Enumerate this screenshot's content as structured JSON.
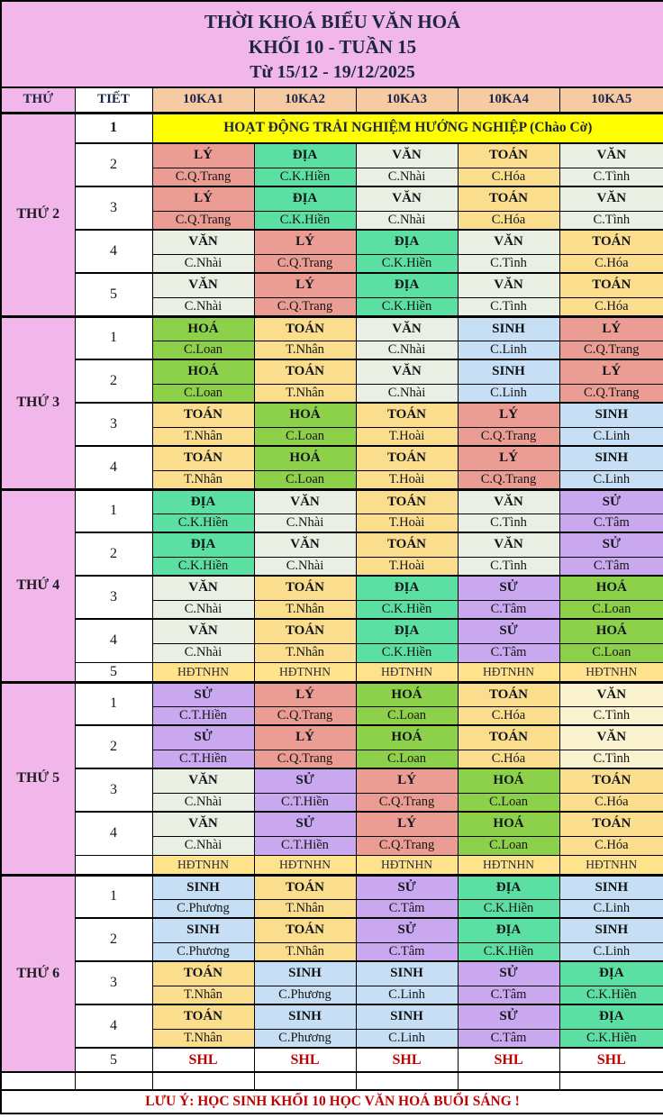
{
  "title": {
    "line1": "THỜI KHOÁ BIỂU VĂN HOÁ",
    "line2": "KHỐI 10 - TUẦN 15",
    "line3": "Từ 15/12 - 19/12/2025"
  },
  "header": {
    "columns": [
      "THỨ",
      "TIẾT",
      "10KA1",
      "10KA2",
      "10KA3",
      "10KA4",
      "10KA5"
    ]
  },
  "palette": {
    "pink": "#f1b6ea",
    "peach_header": "#f6cba3",
    "banner_yellow": "#ffff00",
    "ly": "#eb9c93",
    "dia": "#5cdfa3",
    "van": "#e9efe2",
    "van_cream": "#fbf2cf",
    "toan": "#fbdd8e",
    "hoa": "#8dd14b",
    "sinh": "#c6dff4",
    "su": "#c9a8f0",
    "hdtnhn": "#ffe28c",
    "white": "#ffffff",
    "red_text": "#c00000",
    "navy_text": "#1d2547"
  },
  "days": [
    {
      "label": "THỨ 2",
      "periods": [
        {
          "no": "1",
          "type": "banner",
          "text": "HOẠT ĐỘNG TRẢI NGHIỆM HƯỚNG NGHIỆP (Chào Cờ)"
        },
        {
          "no": "2",
          "type": "lesson",
          "cells": [
            {
              "s": "LÝ",
              "t": "C.Q.Trang",
              "c": "ly"
            },
            {
              "s": "ĐỊA",
              "t": "C.K.Hiền",
              "c": "dia"
            },
            {
              "s": "VĂN",
              "t": "C.Nhài",
              "c": "van"
            },
            {
              "s": "TOÁN",
              "t": "C.Hóa",
              "c": "toan"
            },
            {
              "s": "VĂN",
              "t": "C.Tình",
              "c": "van"
            }
          ]
        },
        {
          "no": "3",
          "type": "lesson",
          "cells": [
            {
              "s": "LÝ",
              "t": "C.Q.Trang",
              "c": "ly"
            },
            {
              "s": "ĐỊA",
              "t": "C.K.Hiền",
              "c": "dia"
            },
            {
              "s": "VĂN",
              "t": "C.Nhài",
              "c": "van"
            },
            {
              "s": "TOÁN",
              "t": "C.Hóa",
              "c": "toan"
            },
            {
              "s": "VĂN",
              "t": "C.Tình",
              "c": "van"
            }
          ]
        },
        {
          "no": "4",
          "type": "lesson",
          "cells": [
            {
              "s": "VĂN",
              "t": "C.Nhài",
              "c": "van"
            },
            {
              "s": "LÝ",
              "t": "C.Q.Trang",
              "c": "ly"
            },
            {
              "s": "ĐỊA",
              "t": "C.K.Hiền",
              "c": "dia"
            },
            {
              "s": "VĂN",
              "t": "C.Tình",
              "c": "van"
            },
            {
              "s": "TOÁN",
              "t": "C.Hóa",
              "c": "toan"
            }
          ]
        },
        {
          "no": "5",
          "type": "lesson",
          "cells": [
            {
              "s": "VĂN",
              "t": "C.Nhài",
              "c": "van"
            },
            {
              "s": "LÝ",
              "t": "C.Q.Trang",
              "c": "ly"
            },
            {
              "s": "ĐỊA",
              "t": "C.K.Hiền",
              "c": "dia"
            },
            {
              "s": "VĂN",
              "t": "C.Tình",
              "c": "van"
            },
            {
              "s": "TOÁN",
              "t": "C.Hóa",
              "c": "toan"
            }
          ]
        }
      ]
    },
    {
      "label": "THỨ 3",
      "periods": [
        {
          "no": "1",
          "type": "lesson",
          "cells": [
            {
              "s": "HOÁ",
              "t": "C.Loan",
              "c": "hoa"
            },
            {
              "s": "TOÁN",
              "t": "T.Nhân",
              "c": "toan"
            },
            {
              "s": "VĂN",
              "t": "C.Nhài",
              "c": "van"
            },
            {
              "s": "SINH",
              "t": "C.Linh",
              "c": "sinh"
            },
            {
              "s": "LÝ",
              "t": "C.Q.Trang",
              "c": "ly"
            }
          ]
        },
        {
          "no": "2",
          "type": "lesson",
          "cells": [
            {
              "s": "HOÁ",
              "t": "C.Loan",
              "c": "hoa"
            },
            {
              "s": "TOÁN",
              "t": "T.Nhân",
              "c": "toan"
            },
            {
              "s": "VĂN",
              "t": "C.Nhài",
              "c": "van"
            },
            {
              "s": "SINH",
              "t": "C.Linh",
              "c": "sinh"
            },
            {
              "s": "LÝ",
              "t": "C.Q.Trang",
              "c": "ly"
            }
          ]
        },
        {
          "no": "3",
          "type": "lesson",
          "cells": [
            {
              "s": "TOÁN",
              "t": "T.Nhân",
              "c": "toan"
            },
            {
              "s": "HOÁ",
              "t": "C.Loan",
              "c": "hoa"
            },
            {
              "s": "TOÁN",
              "t": "T.Hoài",
              "c": "toan"
            },
            {
              "s": "LÝ",
              "t": "C.Q.Trang",
              "c": "ly"
            },
            {
              "s": "SINH",
              "t": "C.Linh",
              "c": "sinh"
            }
          ]
        },
        {
          "no": "4",
          "type": "lesson",
          "cells": [
            {
              "s": "TOÁN",
              "t": "T.Nhân",
              "c": "toan"
            },
            {
              "s": "HOÁ",
              "t": "C.Loan",
              "c": "hoa"
            },
            {
              "s": "TOÁN",
              "t": "T.Hoài",
              "c": "toan"
            },
            {
              "s": "LÝ",
              "t": "C.Q.Trang",
              "c": "ly"
            },
            {
              "s": "SINH",
              "t": "C.Linh",
              "c": "sinh"
            }
          ]
        }
      ]
    },
    {
      "label": "THỨ 4",
      "periods": [
        {
          "no": "1",
          "type": "lesson",
          "cells": [
            {
              "s": "ĐỊA",
              "t": "C.K.Hiền",
              "c": "dia"
            },
            {
              "s": "VĂN",
              "t": "C.Nhài",
              "c": "van"
            },
            {
              "s": "TOÁN",
              "t": "T.Hoài",
              "c": "toan"
            },
            {
              "s": "VĂN",
              "t": "C.Tình",
              "c": "van"
            },
            {
              "s": "SỬ",
              "t": "C.Tâm",
              "c": "su"
            }
          ]
        },
        {
          "no": "2",
          "type": "lesson",
          "cells": [
            {
              "s": "ĐỊA",
              "t": "C.K.Hiền",
              "c": "dia"
            },
            {
              "s": "VĂN",
              "t": "C.Nhài",
              "c": "van"
            },
            {
              "s": "TOÁN",
              "t": "T.Hoài",
              "c": "toan"
            },
            {
              "s": "VĂN",
              "t": "C.Tình",
              "c": "van"
            },
            {
              "s": "SỬ",
              "t": "C.Tâm",
              "c": "su"
            }
          ]
        },
        {
          "no": "3",
          "type": "lesson",
          "cells": [
            {
              "s": "VĂN",
              "t": "C.Nhài",
              "c": "van"
            },
            {
              "s": "TOÁN",
              "t": "T.Nhân",
              "c": "toan"
            },
            {
              "s": "ĐỊA",
              "t": "C.K.Hiền",
              "c": "dia"
            },
            {
              "s": "SỬ",
              "t": "C.Tâm",
              "c": "su"
            },
            {
              "s": "HOÁ",
              "t": "C.Loan",
              "c": "hoa"
            }
          ]
        },
        {
          "no": "4",
          "type": "lesson",
          "cells": [
            {
              "s": "VĂN",
              "t": "C.Nhài",
              "c": "van"
            },
            {
              "s": "TOÁN",
              "t": "T.Nhân",
              "c": "toan"
            },
            {
              "s": "ĐỊA",
              "t": "C.K.Hiền",
              "c": "dia"
            },
            {
              "s": "SỬ",
              "t": "C.Tâm",
              "c": "su"
            },
            {
              "s": "HOÁ",
              "t": "C.Loan",
              "c": "hoa"
            }
          ]
        },
        {
          "no": "5",
          "type": "hdtnhn",
          "text": "HĐTNHN"
        }
      ]
    },
    {
      "label": "THỨ 5",
      "periods": [
        {
          "no": "1",
          "type": "lesson",
          "cells": [
            {
              "s": "SỬ",
              "t": "C.T.Hiền",
              "c": "su"
            },
            {
              "s": "LÝ",
              "t": "C.Q.Trang",
              "c": "ly"
            },
            {
              "s": "HOÁ",
              "t": "C.Loan",
              "c": "hoa"
            },
            {
              "s": "TOÁN",
              "t": "C.Hóa",
              "c": "toan"
            },
            {
              "s": "VĂN",
              "t": "C.Tình",
              "c": "van_cream"
            }
          ]
        },
        {
          "no": "2",
          "type": "lesson",
          "cells": [
            {
              "s": "SỬ",
              "t": "C.T.Hiền",
              "c": "su"
            },
            {
              "s": "LÝ",
              "t": "C.Q.Trang",
              "c": "ly"
            },
            {
              "s": "HOÁ",
              "t": "C.Loan",
              "c": "hoa"
            },
            {
              "s": "TOÁN",
              "t": "C.Hóa",
              "c": "toan"
            },
            {
              "s": "VĂN",
              "t": "C.Tình",
              "c": "van_cream"
            }
          ]
        },
        {
          "no": "3",
          "type": "lesson",
          "cells": [
            {
              "s": "VĂN",
              "t": "C.Nhài",
              "c": "van"
            },
            {
              "s": "SỬ",
              "t": "C.T.Hiền",
              "c": "su"
            },
            {
              "s": "LÝ",
              "t": "C.Q.Trang",
              "c": "ly"
            },
            {
              "s": "HOÁ",
              "t": "C.Loan",
              "c": "hoa"
            },
            {
              "s": "TOÁN",
              "t": "C.Hóa",
              "c": "toan"
            }
          ]
        },
        {
          "no": "4",
          "type": "lesson",
          "cells": [
            {
              "s": "VĂN",
              "t": "C.Nhài",
              "c": "van"
            },
            {
              "s": "SỬ",
              "t": "C.T.Hiền",
              "c": "su"
            },
            {
              "s": "LÝ",
              "t": "C.Q.Trang",
              "c": "ly"
            },
            {
              "s": "HOÁ",
              "t": "C.Loan",
              "c": "hoa"
            },
            {
              "s": "TOÁN",
              "t": "C.Hóa",
              "c": "toan"
            }
          ]
        },
        {
          "no": "",
          "type": "hdtnhn",
          "text": "HĐTNHN"
        }
      ]
    },
    {
      "label": "THỨ 6",
      "periods": [
        {
          "no": "1",
          "type": "lesson",
          "cells": [
            {
              "s": "SINH",
              "t": "C.Phương",
              "c": "sinh"
            },
            {
              "s": "TOÁN",
              "t": "T.Nhân",
              "c": "toan"
            },
            {
              "s": "SỬ",
              "t": "C.Tâm",
              "c": "su"
            },
            {
              "s": "ĐỊA",
              "t": "C.K.Hiền",
              "c": "dia"
            },
            {
              "s": "SINH",
              "t": "C.Linh",
              "c": "sinh"
            }
          ]
        },
        {
          "no": "2",
          "type": "lesson",
          "cells": [
            {
              "s": "SINH",
              "t": "C.Phương",
              "c": "sinh"
            },
            {
              "s": "TOÁN",
              "t": "T.Nhân",
              "c": "toan"
            },
            {
              "s": "SỬ",
              "t": "C.Tâm",
              "c": "su"
            },
            {
              "s": "ĐỊA",
              "t": "C.K.Hiền",
              "c": "dia"
            },
            {
              "s": "SINH",
              "t": "C.Linh",
              "c": "sinh"
            }
          ]
        },
        {
          "no": "3",
          "type": "lesson",
          "cells": [
            {
              "s": "TOÁN",
              "t": "T.Nhân",
              "c": "toan"
            },
            {
              "s": "SINH",
              "t": "C.Phương",
              "c": "sinh"
            },
            {
              "s": "SINH",
              "t": "C.Linh",
              "c": "sinh"
            },
            {
              "s": "SỬ",
              "t": "C.Tâm",
              "c": "su"
            },
            {
              "s": "ĐỊA",
              "t": "C.K.Hiền",
              "c": "dia"
            }
          ]
        },
        {
          "no": "4",
          "type": "lesson",
          "cells": [
            {
              "s": "TOÁN",
              "t": "T.Nhân",
              "c": "toan"
            },
            {
              "s": "SINH",
              "t": "C.Phương",
              "c": "sinh"
            },
            {
              "s": "SINH",
              "t": "C.Linh",
              "c": "sinh"
            },
            {
              "s": "SỬ",
              "t": "C.Tâm",
              "c": "su"
            },
            {
              "s": "ĐỊA",
              "t": "C.K.Hiền",
              "c": "dia"
            }
          ]
        },
        {
          "no": "5",
          "type": "shl",
          "text": "SHL"
        }
      ]
    }
  ],
  "footer": {
    "note": "LƯU Ý:  HỌC SINH KHỐI 10 HỌC VĂN HOÁ BUỔI SÁNG !"
  }
}
